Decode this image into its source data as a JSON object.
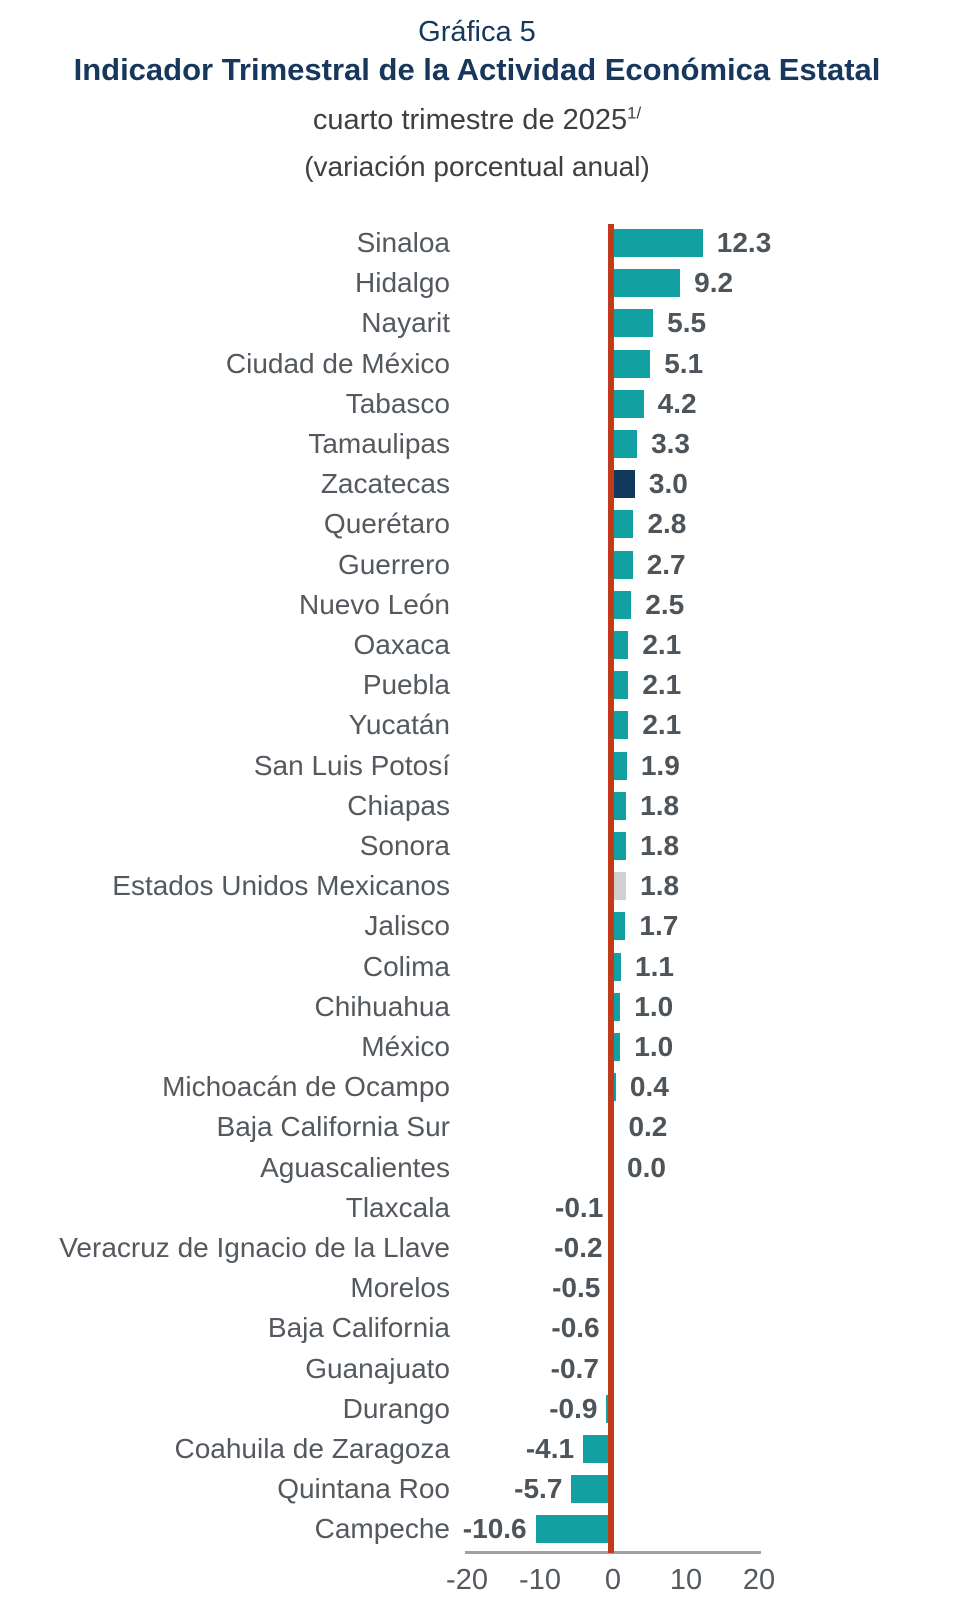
{
  "header": {
    "figure_label": "Gráfica 5",
    "title": "Indicador Trimestral de la Actividad Económica Estatal",
    "subtitle": "cuarto trimestre de 2025",
    "subtitle_superscript": "1/",
    "subtitle_units": "(variación porcentual anual)"
  },
  "chart_data": {
    "type": "bar",
    "orientation": "horizontal",
    "title": "Indicador Trimestral de la Actividad Económica Estatal",
    "subtitle": "cuarto trimestre de 2025 1/ (variación porcentual anual)",
    "categories": [
      "Sinaloa",
      "Hidalgo",
      "Nayarit",
      "Ciudad de México",
      "Tabasco",
      "Tamaulipas",
      "Zacatecas",
      "Querétaro",
      "Guerrero",
      "Nuevo León",
      "Oaxaca",
      "Puebla",
      "Yucatán",
      "San Luis Potosí",
      "Chiapas",
      "Sonora",
      "Estados Unidos Mexicanos",
      "Jalisco",
      "Colima",
      "Chihuahua",
      "México",
      "Michoacán de Ocampo",
      "Baja California Sur",
      "Aguascalientes",
      "Tlaxcala",
      "Veracruz de Ignacio de la Llave",
      "Morelos",
      "Baja California",
      "Guanajuato",
      "Durango",
      "Coahuila de Zaragoza",
      "Quintana Roo",
      "Campeche"
    ],
    "values": [
      12.3,
      9.2,
      5.5,
      5.1,
      4.2,
      3.3,
      3.0,
      2.8,
      2.7,
      2.5,
      2.1,
      2.1,
      2.1,
      1.9,
      1.8,
      1.8,
      1.8,
      1.7,
      1.1,
      1.0,
      1.0,
      0.4,
      0.2,
      0.0,
      -0.1,
      -0.2,
      -0.5,
      -0.6,
      -0.7,
      -0.9,
      -4.1,
      -5.7,
      -10.6
    ],
    "bar_color": "#13A0A3",
    "highlighted_bars": [
      {
        "category": "Zacatecas",
        "color": "#12395D"
      },
      {
        "category": "Estados Unidos Mexicanos",
        "color": "#D1CFCF"
      }
    ],
    "zero_line_color": "#C13A1A",
    "axis_line_color": "#A0A0A0",
    "xlim": [
      -20,
      20
    ],
    "x_tick_labels": [
      "-20",
      "-10",
      "0",
      "10",
      "20"
    ],
    "x_tick_values": [
      -20,
      -10,
      0,
      10,
      20
    ],
    "grid": false,
    "legend": false
  }
}
